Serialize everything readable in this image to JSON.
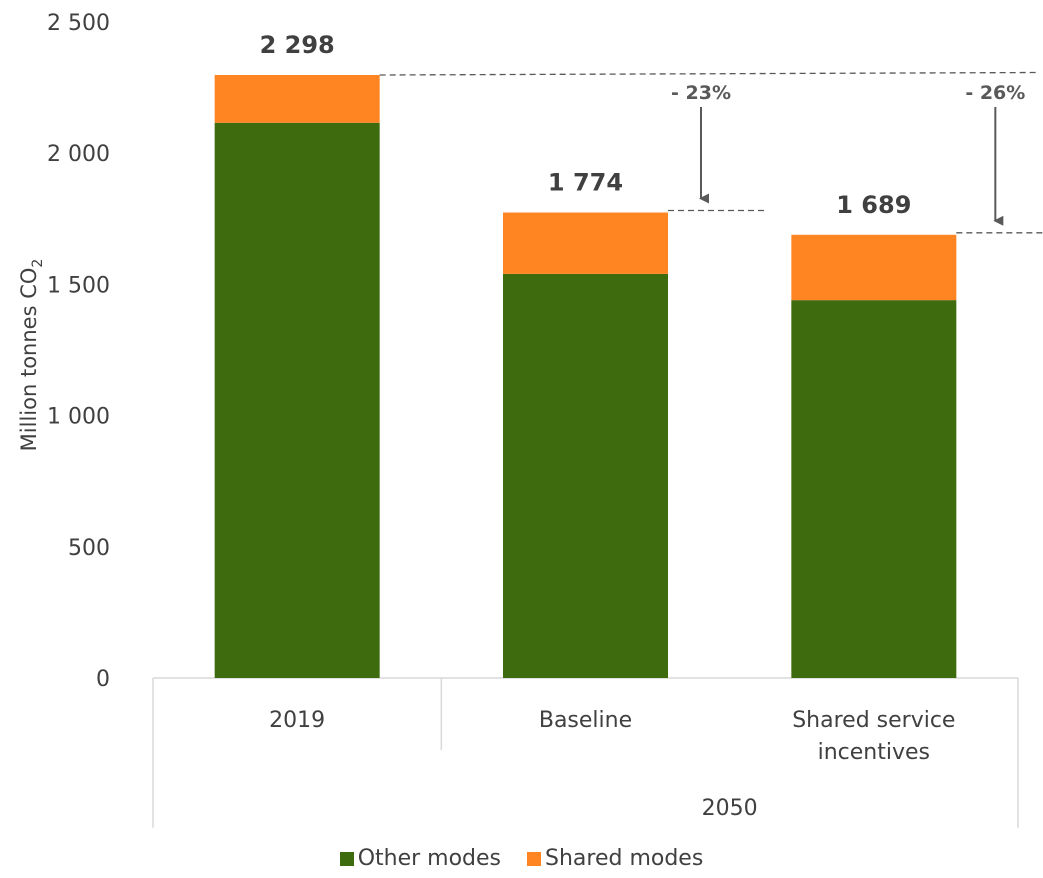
{
  "chart_data": {
    "type": "bar",
    "stacked": true,
    "ylabel": "Million tonnes CO",
    "ylabel_subscript": "2",
    "ylim": [
      0,
      2500
    ],
    "yticks": [
      0,
      500,
      1000,
      1500,
      2000,
      2500
    ],
    "ytick_labels": [
      "0",
      "500",
      "1 000",
      "1 500",
      "2 000",
      "2 500"
    ],
    "categories": [
      "2019",
      "Baseline",
      "Shared service incentives"
    ],
    "category_lines": [
      [
        "2019"
      ],
      [
        "Baseline"
      ],
      [
        "Shared service",
        "incentives"
      ]
    ],
    "group_label": "2050",
    "group_span": [
      "Baseline",
      "Shared service incentives"
    ],
    "series": [
      {
        "name": "Other modes",
        "color": "#3f6b0f",
        "values": [
          2116,
          1540,
          1440
        ]
      },
      {
        "name": "Shared modes",
        "color": "#ff8522",
        "values": [
          182,
          234,
          249
        ]
      }
    ],
    "totals": [
      2298,
      1774,
      1689
    ],
    "total_labels": [
      "2 298",
      "1 774",
      "1 689"
    ],
    "reductions": [
      {
        "category": "Baseline",
        "label": "- 23%"
      },
      {
        "category": "Shared service incentives",
        "label": "- 26%"
      }
    ],
    "grid": false,
    "legend_position": "bottom"
  }
}
